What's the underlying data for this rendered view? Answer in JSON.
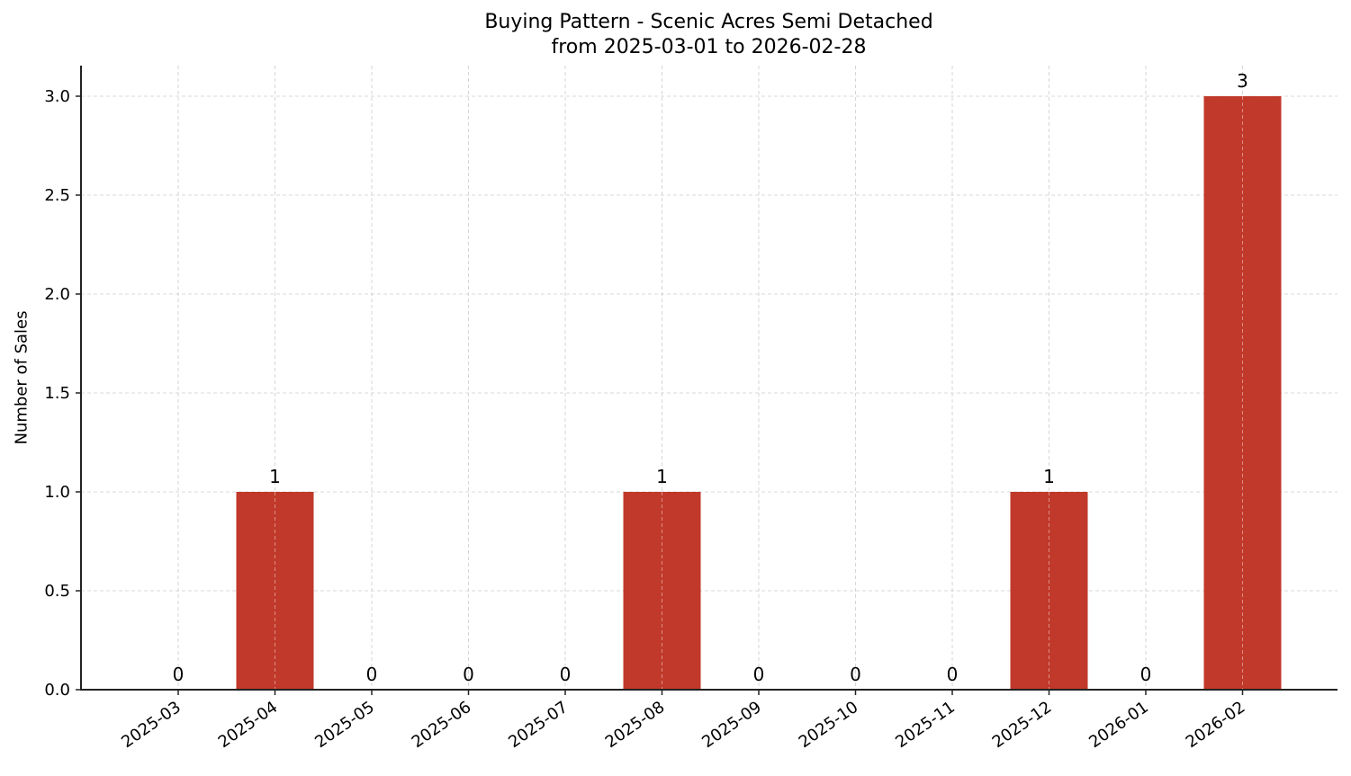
{
  "chart_data": {
    "type": "bar",
    "title": "Buying Pattern - Scenic Acres Semi Detached",
    "subtitle": "from 2025-03-01 to 2026-02-28",
    "xlabel": "",
    "ylabel": "Number of Sales",
    "categories": [
      "2025-03",
      "2025-04",
      "2025-05",
      "2025-06",
      "2025-07",
      "2025-08",
      "2025-09",
      "2025-10",
      "2025-11",
      "2025-12",
      "2026-01",
      "2026-02"
    ],
    "values": [
      0,
      1,
      0,
      0,
      0,
      1,
      0,
      0,
      0,
      1,
      0,
      3
    ],
    "data_labels": [
      "0",
      "1",
      "0",
      "0",
      "0",
      "1",
      "0",
      "0",
      "0",
      "1",
      "0",
      "3"
    ],
    "ylim": [
      0,
      3.15
    ],
    "yticks": [
      0.0,
      0.5,
      1.0,
      1.5,
      2.0,
      2.5,
      3.0
    ],
    "ytick_labels": [
      "0.0",
      "0.5",
      "1.0",
      "1.5",
      "2.0",
      "2.5",
      "3.0"
    ],
    "grid": true,
    "legend": null,
    "bar_color": "#c0392b"
  }
}
